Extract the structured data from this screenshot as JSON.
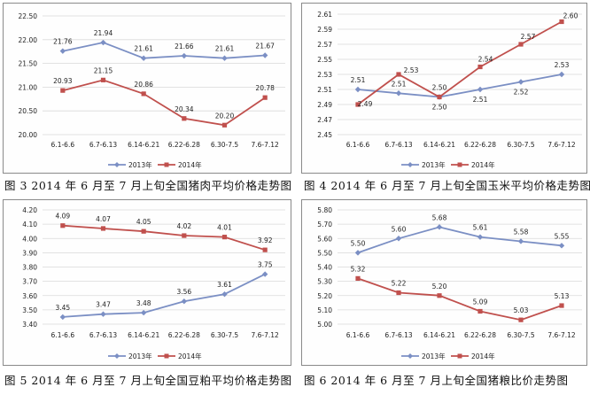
{
  "colors": {
    "series2013": "#7b8fc4",
    "series2014": "#c0504d",
    "grid": "#d9d9d9",
    "text": "#222222"
  },
  "charts": [
    {
      "caption": "图 3  2014 年 6 月至 7 月上旬全国猪肉平均价格走势图"
    },
    {
      "caption": "图 4  2014 年 6 月至 7 月上旬全国玉米平均价格走势图"
    },
    {
      "caption": "图 5  2014 年 6 月至 7 月上旬全国豆粕平均价格走势图"
    },
    {
      "caption": "图 6  2014 年 6 月至 7 月上旬全国猪粮比价走势图"
    }
  ],
  "chart_data": [
    {
      "type": "line",
      "categories": [
        "6.1-6.6",
        "6.7-6.13",
        "6.14-6.21",
        "6.22-6.28",
        "6.30-7.5",
        "7.6-7.12"
      ],
      "series": [
        {
          "name": "2013年",
          "values": [
            21.76,
            21.94,
            21.61,
            21.66,
            21.61,
            21.67
          ],
          "labels": [
            "21.76",
            "21.94",
            "21.61",
            "21.66",
            "21.61",
            "21.67"
          ]
        },
        {
          "name": "2014年",
          "values": [
            20.93,
            21.15,
            20.86,
            20.34,
            20.2,
            20.78
          ],
          "labels": [
            "20.93",
            "21.15",
            "20.86",
            "20.34",
            "20.20",
            "20.78"
          ]
        }
      ],
      "ylim": [
        20.0,
        22.5
      ],
      "yticks": [
        "20.00",
        "20.50",
        "21.00",
        "21.50",
        "22.00",
        "22.50"
      ],
      "legend": "bottom",
      "grid": true
    },
    {
      "type": "line",
      "categories": [
        "6.1-6.6",
        "6.7-6.13",
        "6.14-6.21",
        "6.22-6.28",
        "6.30-7.5",
        "7.6-7.12"
      ],
      "series": [
        {
          "name": "2013年",
          "values": [
            2.51,
            2.505,
            2.5,
            2.51,
            2.52,
            2.53
          ],
          "labels": [
            "2.51",
            "2.51",
            "2.50",
            "2.51",
            "2.52",
            "2.53"
          ]
        },
        {
          "name": "2014年",
          "values": [
            2.49,
            2.53,
            2.5,
            2.54,
            2.57,
            2.6
          ],
          "labels": [
            "2.49",
            "2.53",
            "2.50",
            "2.54",
            "2.57",
            "2.60"
          ]
        }
      ],
      "ylim": [
        2.45,
        2.61
      ],
      "yticks": [
        "2.45",
        "2.47",
        "2.49",
        "2.51",
        "2.53",
        "2.55",
        "2.57",
        "2.59",
        "2.61"
      ],
      "legend": "bottom",
      "grid": true
    },
    {
      "type": "line",
      "categories": [
        "6.1-6.6",
        "6.7-6.13",
        "6.14-6.21",
        "6.22-6.28",
        "6.30-7.5",
        "7.6-7.12"
      ],
      "series": [
        {
          "name": "2013年",
          "values": [
            3.45,
            3.47,
            3.48,
            3.56,
            3.61,
            3.75
          ],
          "labels": [
            "3.45",
            "3.47",
            "3.48",
            "3.56",
            "3.61",
            "3.75"
          ]
        },
        {
          "name": "2014年",
          "values": [
            4.09,
            4.07,
            4.05,
            4.02,
            4.01,
            3.92
          ],
          "labels": [
            "4.09",
            "4.07",
            "4.05",
            "4.02",
            "4.01",
            "3.92"
          ]
        }
      ],
      "ylim": [
        3.4,
        4.2
      ],
      "yticks": [
        "3.40",
        "3.50",
        "3.60",
        "3.70",
        "3.80",
        "3.90",
        "4.00",
        "4.10",
        "4.20"
      ],
      "legend": "bottom",
      "grid": true
    },
    {
      "type": "line",
      "categories": [
        "6.1-6.6",
        "6.7-6.13",
        "6.14-6.21",
        "6.22-6.28",
        "6.30-7.5",
        "7.6-7.12"
      ],
      "series": [
        {
          "name": "2013年",
          "values": [
            5.5,
            5.6,
            5.68,
            5.61,
            5.58,
            5.55
          ],
          "labels": [
            "5.50",
            "5.60",
            "5.68",
            "5.61",
            "5.58",
            "5.55"
          ]
        },
        {
          "name": "2014年",
          "values": [
            5.32,
            5.22,
            5.2,
            5.09,
            5.03,
            5.13
          ],
          "labels": [
            "5.32",
            "5.22",
            "5.20",
            "5.09",
            "5.03",
            "5.13"
          ]
        }
      ],
      "ylim": [
        5.0,
        5.8
      ],
      "yticks": [
        "5.00",
        "5.10",
        "5.20",
        "5.30",
        "5.40",
        "5.50",
        "5.60",
        "5.70",
        "5.80"
      ],
      "legend": "bottom",
      "grid": true
    }
  ]
}
